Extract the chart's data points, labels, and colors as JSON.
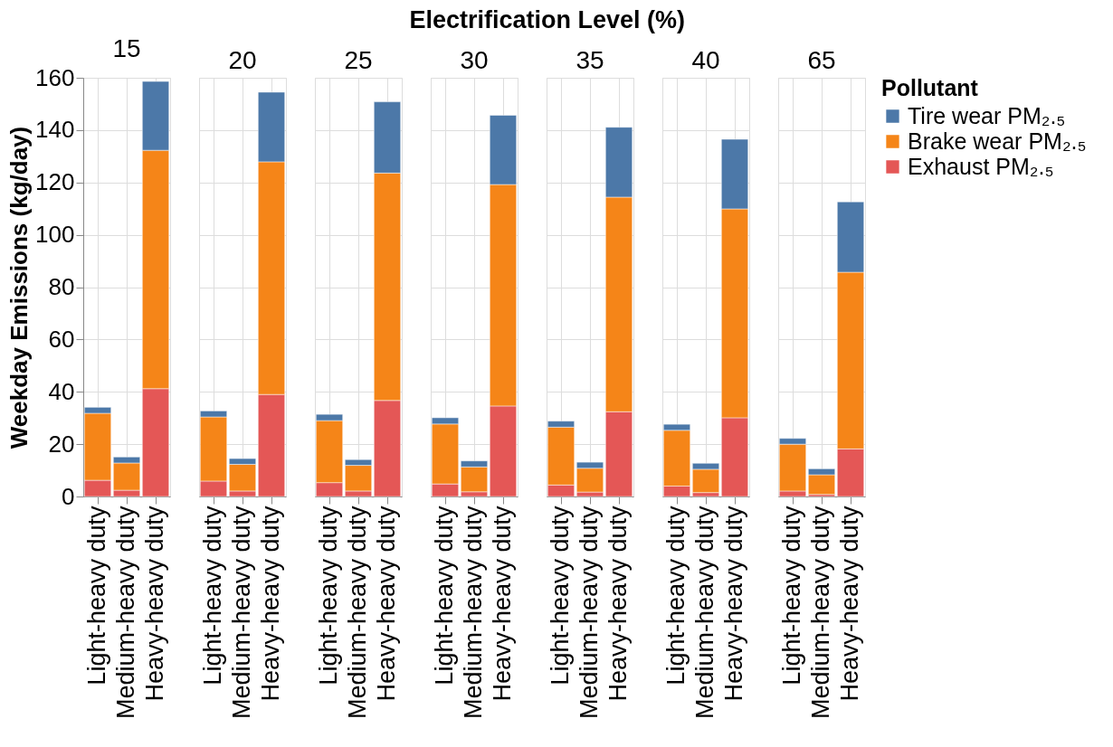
{
  "chart_data": [
    {
      "type": "bar",
      "title": "15",
      "annotations": [
        "Electrification Level (%)"
      ],
      "ylabel": "Weekday Emissions (kg/day)",
      "stacked": true,
      "grid": true,
      "ylim": [
        0,
        160
      ],
      "yticks": [
        0,
        20,
        40,
        60,
        80,
        100,
        120,
        140,
        160
      ],
      "categories": [
        "Light-heavy duty",
        "Medium-heavy duty",
        "Heavy-heavy duty"
      ],
      "series": [
        {
          "color": "#e45756",
          "values": [
            6.2,
            2.4,
            41.2
          ]
        },
        {
          "color": "#f58518",
          "values": [
            25.6,
            10.4,
            91.1
          ]
        },
        {
          "color": "#4c78a8",
          "values": [
            2.3,
            2.3,
            26.3
          ]
        }
      ]
    },
    {
      "type": "bar",
      "title": "20",
      "stacked": true,
      "grid": true,
      "tick_labels": "x",
      "ylim": [
        0,
        160
      ],
      "yticks": [
        0,
        20,
        40,
        60,
        80,
        100,
        120,
        140,
        160
      ],
      "categories": [
        "Light-heavy duty",
        "Medium-heavy duty",
        "Heavy-heavy duty"
      ],
      "series": [
        {
          "color": "#e45756",
          "values": [
            5.9,
            2.1,
            39.0
          ]
        },
        {
          "color": "#f58518",
          "values": [
            24.5,
            10.2,
            88.9
          ]
        },
        {
          "color": "#4c78a8",
          "values": [
            2.3,
            2.2,
            26.6
          ]
        }
      ]
    },
    {
      "type": "bar",
      "title": "25",
      "stacked": true,
      "grid": true,
      "tick_labels": "x",
      "ylim": [
        0,
        160
      ],
      "yticks": [
        0,
        20,
        40,
        60,
        80,
        100,
        120,
        140,
        160
      ],
      "categories": [
        "Light-heavy duty",
        "Medium-heavy duty",
        "Heavy-heavy duty"
      ],
      "series": [
        {
          "color": "#e45756",
          "values": [
            5.3,
            2.1,
            36.7
          ]
        },
        {
          "color": "#f58518",
          "values": [
            23.7,
            9.8,
            86.9
          ]
        },
        {
          "color": "#4c78a8",
          "values": [
            2.4,
            2.2,
            27.2
          ]
        }
      ]
    },
    {
      "type": "bar",
      "title": "30",
      "stacked": true,
      "grid": true,
      "tick_labels": "x",
      "ylim": [
        0,
        160
      ],
      "yticks": [
        0,
        20,
        40,
        60,
        80,
        100,
        120,
        140,
        160
      ],
      "categories": [
        "Light-heavy duty",
        "Medium-heavy duty",
        "Heavy-heavy duty"
      ],
      "series": [
        {
          "color": "#e45756",
          "values": [
            4.8,
            1.8,
            34.6
          ]
        },
        {
          "color": "#f58518",
          "values": [
            22.9,
            9.5,
            84.6
          ]
        },
        {
          "color": "#4c78a8",
          "values": [
            2.4,
            2.3,
            26.5
          ]
        }
      ]
    },
    {
      "type": "bar",
      "title": "35",
      "stacked": true,
      "grid": true,
      "tick_labels": "x",
      "ylim": [
        0,
        160
      ],
      "yticks": [
        0,
        20,
        40,
        60,
        80,
        100,
        120,
        140,
        160
      ],
      "categories": [
        "Light-heavy duty",
        "Medium-heavy duty",
        "Heavy-heavy duty"
      ],
      "series": [
        {
          "color": "#e45756",
          "values": [
            4.4,
            1.7,
            32.4
          ]
        },
        {
          "color": "#f58518",
          "values": [
            22.1,
            9.1,
            82.0
          ]
        },
        {
          "color": "#4c78a8",
          "values": [
            2.3,
            2.3,
            26.7
          ]
        }
      ]
    },
    {
      "type": "bar",
      "title": "40",
      "stacked": true,
      "grid": true,
      "tick_labels": "x",
      "ylim": [
        0,
        160
      ],
      "yticks": [
        0,
        20,
        40,
        60,
        80,
        100,
        120,
        140,
        160
      ],
      "categories": [
        "Light-heavy duty",
        "Medium-heavy duty",
        "Heavy-heavy duty"
      ],
      "series": [
        {
          "color": "#e45756",
          "values": [
            4.0,
            1.5,
            30.1
          ]
        },
        {
          "color": "#f58518",
          "values": [
            21.3,
            8.9,
            79.8
          ]
        },
        {
          "color": "#4c78a8",
          "values": [
            2.3,
            2.3,
            26.6
          ]
        }
      ]
    },
    {
      "type": "bar",
      "title": "65",
      "stacked": true,
      "grid": true,
      "tick_labels": "x",
      "legend": "right",
      "legend_title": "Pollutant",
      "ylim": [
        0,
        160
      ],
      "yticks": [
        0,
        20,
        40,
        60,
        80,
        100,
        120,
        140,
        160
      ],
      "categories": [
        "Light-heavy duty",
        "Medium-heavy duty",
        "Heavy-heavy duty"
      ],
      "series": [
        {
          "name": "Exhaust PM₂.₅",
          "color": "#e45756",
          "values": [
            2.1,
            0.8,
            18.2
          ]
        },
        {
          "name": "Brake wear PM₂.₅",
          "color": "#f58518",
          "values": [
            17.9,
            7.5,
            67.5
          ]
        },
        {
          "name": "Tire wear PM₂.₅",
          "color": "#4c78a8",
          "values": [
            2.2,
            2.3,
            26.9
          ]
        }
      ]
    }
  ]
}
